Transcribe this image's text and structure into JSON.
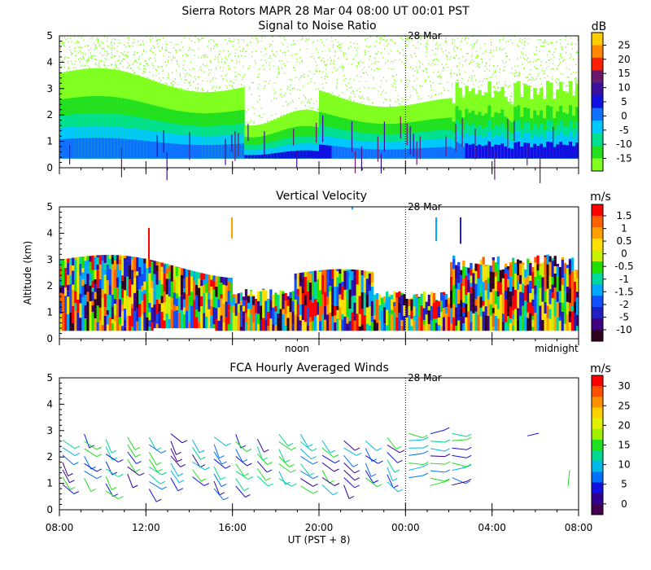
{
  "header": {
    "title": "Sierra Rotors   MAPR 28 Mar 04   08:00 UT   00:01   PST"
  },
  "xaxis": {
    "label": "UT  (PST + 8)",
    "ticks": [
      "08:00",
      "12:00",
      "16:00",
      "20:00",
      "00:00",
      "04:00",
      "08:00"
    ],
    "date_marker": "28 Mar",
    "pst_labels": [
      "noon",
      "midnight"
    ]
  },
  "chart_data": [
    {
      "type": "heatmap",
      "title": "Signal to Noise Ratio",
      "xlabel": "UT (PST + 8)",
      "ylabel": "Altitude (km)",
      "ylim": [
        0,
        5
      ],
      "yticks": [
        "0",
        "1",
        "2",
        "3",
        "4",
        "5"
      ],
      "colorbar": {
        "unit": "dB",
        "ticks": [
          "25",
          "20",
          "15",
          "10",
          "5",
          "0",
          "-5",
          "-10",
          "-15"
        ],
        "colors": [
          "#ffcc00",
          "#ff8800",
          "#ff2000",
          "#6a1a6a",
          "#3a10a0",
          "#1010e0",
          "#1070ff",
          "#00c8ff",
          "#00e090",
          "#20e020",
          "#80ff20"
        ]
      }
    },
    {
      "type": "heatmap",
      "title": "Vertical Velocity",
      "xlabel": "UT (PST + 8)",
      "ylabel": "Altitude (km)",
      "ylim": [
        0,
        5
      ],
      "yticks": [
        "0",
        "1",
        "2",
        "3",
        "4",
        "5"
      ],
      "colorbar": {
        "unit": "m/s",
        "ticks": [
          "1.5",
          "1",
          "0.5",
          "0",
          "-0.5",
          "-1",
          "-1.5",
          "-2",
          "-5",
          "-10"
        ],
        "colors": [
          "#ff0000",
          "#ff6000",
          "#ffa000",
          "#ffe000",
          "#c8f000",
          "#20e000",
          "#00d8a0",
          "#00a8ff",
          "#1050ff",
          "#2020c0",
          "#400080",
          "#300020"
        ]
      }
    },
    {
      "type": "scatter",
      "title": "FCA Hourly Averaged Winds",
      "xlabel": "UT  (PST + 8)",
      "ylabel": "Altitude (km)",
      "ylim": [
        0,
        5
      ],
      "yticks": [
        "0",
        "1",
        "2",
        "3",
        "4",
        "5"
      ],
      "colorbar": {
        "unit": "m/s",
        "ticks": [
          "30",
          "25",
          "20",
          "15",
          "10",
          "5",
          "0"
        ],
        "colors": [
          "#ff0000",
          "#ff5000",
          "#ff9000",
          "#ffd000",
          "#e0f000",
          "#a0f000",
          "#20e020",
          "#00d890",
          "#00b8e8",
          "#0070ff",
          "#1010e0",
          "#300090",
          "#400050"
        ]
      }
    }
  ],
  "axis_common": {
    "ylabel": "Altitude (km)"
  }
}
